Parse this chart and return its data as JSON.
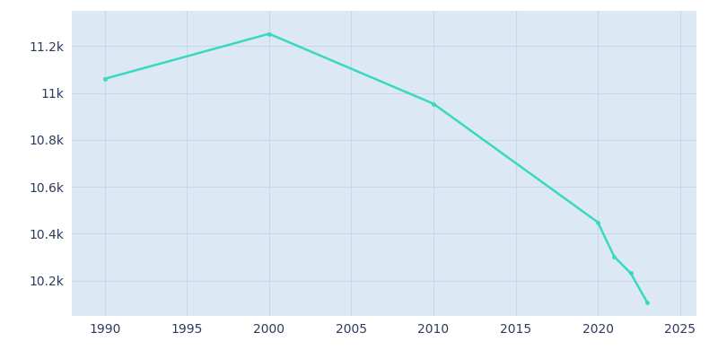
{
  "years": [
    1990,
    2000,
    2010,
    2020,
    2021,
    2022,
    2023
  ],
  "population": [
    11060,
    11252,
    10954,
    10449,
    10302,
    10232,
    10108
  ],
  "line_color": "#38d9c0",
  "marker_color": "#38d9c0",
  "background_color": "#ffffff",
  "plot_bg_color": "#dce9f5",
  "grid_color": "#c8d8ea",
  "tick_color": "#2d3a5e",
  "xlim": [
    1988,
    2026
  ],
  "ylim": [
    10050,
    11350
  ],
  "xticks": [
    1990,
    1995,
    2000,
    2005,
    2010,
    2015,
    2020,
    2025
  ],
  "ytick_values": [
    10200,
    10400,
    10600,
    10800,
    11000,
    11200
  ],
  "ytick_labels": [
    "10.2k",
    "10.4k",
    "10.6k",
    "10.8k",
    "11k",
    "11.2k"
  ]
}
